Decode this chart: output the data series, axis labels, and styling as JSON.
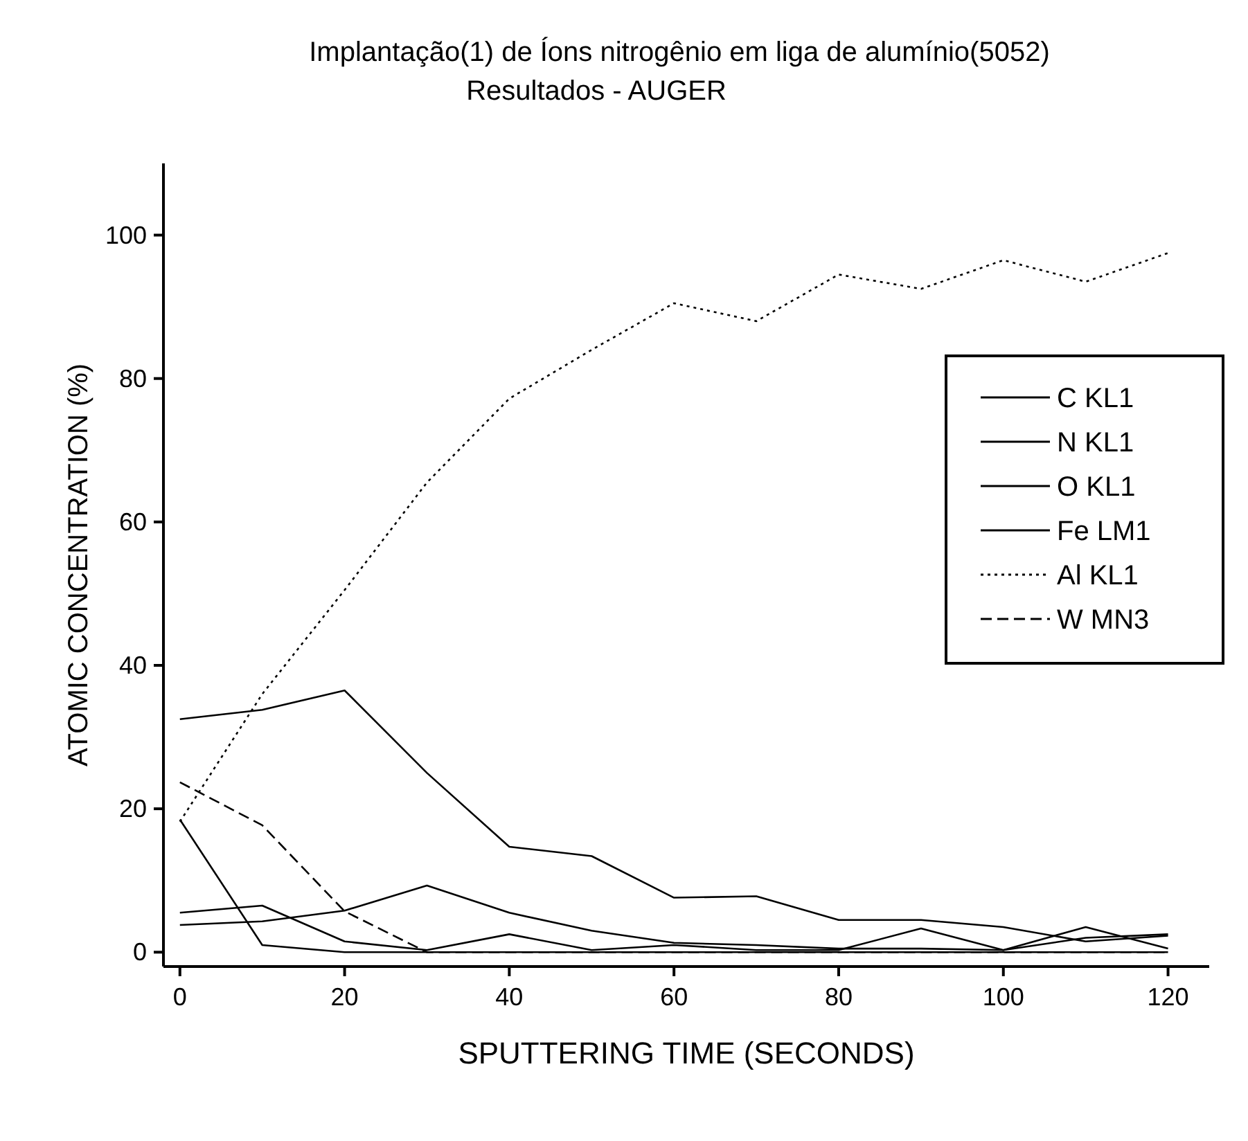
{
  "chart_data": {
    "type": "line",
    "title": "Implantação(1) de Íons nitrogênio em liga de alumínio(5052)",
    "subtitle": "Resultados - AUGER",
    "xlabel": "SPUTTERING TIME (SECONDS)",
    "ylabel": "ATOMIC CONCENTRATION (%)",
    "x": [
      0,
      10,
      20,
      30,
      40,
      50,
      60,
      70,
      80,
      90,
      100,
      110,
      120
    ],
    "series": [
      {
        "name": "C KL1",
        "color": "#000000",
        "line_style": "solid",
        "values": [
          18.5,
          1,
          0,
          0,
          0,
          0,
          0,
          0,
          0,
          0,
          0,
          0,
          0
        ]
      },
      {
        "name": "N KL1",
        "color": "#000000",
        "line_style": "solid",
        "values": [
          3.8,
          4.3,
          5.8,
          9.3,
          5.5,
          3,
          1.3,
          1,
          0.5,
          0.5,
          0.3,
          2,
          2.5
        ]
      },
      {
        "name": "O KL1",
        "color": "#000000",
        "line_style": "solid",
        "values": [
          32.5,
          33.8,
          36.5,
          25,
          14.7,
          13.4,
          7.6,
          7.8,
          4.5,
          4.5,
          3.5,
          1.5,
          2.3
        ]
      },
      {
        "name": "Fe LM1",
        "color": "#000000",
        "line_style": "solid",
        "values": [
          5.5,
          6.5,
          1.5,
          0.3,
          2.5,
          0.3,
          1,
          0.3,
          0.3,
          3.3,
          0.3,
          3.5,
          0.5
        ]
      },
      {
        "name": "Al KL1",
        "color": "#000000",
        "line_style": "dotted",
        "values": [
          18.2,
          36,
          50.5,
          65.5,
          77.2,
          84,
          90.5,
          88,
          94.5,
          92.5,
          96.5,
          93.5,
          97.5
        ]
      },
      {
        "name": "W MN3",
        "color": "#000000",
        "line_style": "dashed",
        "values": [
          23.7,
          17.7,
          5.7,
          0,
          0,
          0,
          0,
          0,
          0,
          0,
          0,
          0,
          0
        ]
      }
    ],
    "xlim": [
      -2,
      125
    ],
    "ylim": [
      -2,
      110
    ],
    "xticks": [
      0,
      20,
      40,
      60,
      80,
      100,
      120
    ],
    "yticks": [
      0,
      20,
      40,
      60,
      80,
      100
    ],
    "grid": false,
    "legend": "right",
    "marker": "none"
  }
}
